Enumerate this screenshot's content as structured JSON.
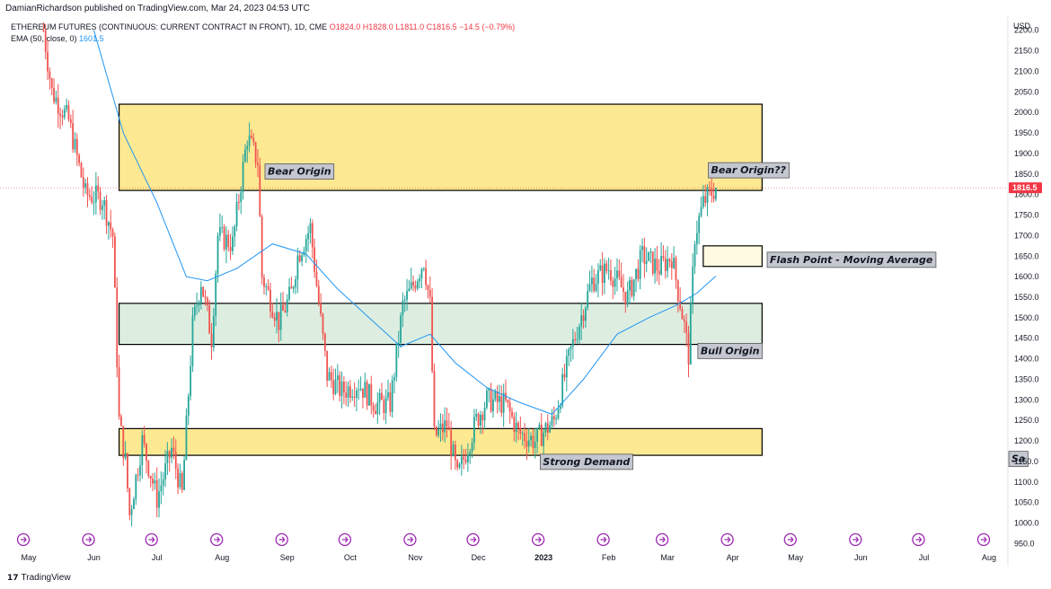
{
  "header": {
    "published": "DamianRichardson published on TradingView.com, Mar 24, 2023 04:53 UTC",
    "symbol": "ETHEREUM FUTURES (CONTINUOUS: CURRENT CONTRACT IN FRONT), 1D, CME",
    "ohlc": "O1824.0  H1828.0  L1811.0  C1816.5  −14.5 (−0.79%)",
    "ema_label": "EMA (50, close, 0)",
    "ema_value": "1601.5"
  },
  "footer": {
    "brand": "TradingView"
  },
  "colors": {
    "up": "#26a69a",
    "down": "#ef5350",
    "ema": "#2196f3",
    "zone_yellow": "#fde992",
    "zone_green": "#ddeee0",
    "zone_pale": "#fffbe0",
    "price_tag": "#f23645"
  },
  "chart_data": {
    "type": "candlestick",
    "currency": "USD",
    "last_price": "1816.5",
    "ylim": [
      940,
      2230
    ],
    "y_ticks": [
      "950.0",
      "1000.0",
      "1050.0",
      "1100.0",
      "1150.0",
      "1200.0",
      "1250.0",
      "1300.0",
      "1350.0",
      "1400.0",
      "1450.0",
      "1500.0",
      "1550.0",
      "1600.0",
      "1650.0",
      "1700.0",
      "1750.0",
      "1800.0",
      "1850.0",
      "1900.0",
      "1950.0",
      "2000.0",
      "2050.0",
      "2100.0",
      "2150.0",
      "2200.0"
    ],
    "x_ticks": [
      "May",
      "Jun",
      "Jul",
      "Aug",
      "Sep",
      "Oct",
      "Nov",
      "Dec",
      "2023",
      "Feb",
      "Mar",
      "Apr",
      "May",
      "Jun",
      "Jul",
      "Aug"
    ],
    "x_tick_dates": [
      "2022-05-01",
      "2022-06-01",
      "2022-07-01",
      "2022-08-01",
      "2022-09-01",
      "2022-10-01",
      "2022-11-01",
      "2022-12-01",
      "2023-01-01",
      "2023-02-01",
      "2023-03-01",
      "2023-04-01",
      "2023-05-01",
      "2023-06-01",
      "2023-07-01",
      "2023-08-01"
    ],
    "price_path": [
      [
        "2022-05-08",
        2200
      ],
      [
        "2022-05-12",
        2050
      ],
      [
        "2022-05-20",
        1980
      ],
      [
        "2022-05-28",
        1800
      ],
      [
        "2022-06-05",
        1790
      ],
      [
        "2022-06-10",
        1700
      ],
      [
        "2022-06-13",
        1250
      ],
      [
        "2022-06-16",
        1150
      ],
      [
        "2022-06-18",
        1020
      ],
      [
        "2022-06-24",
        1200
      ],
      [
        "2022-07-01",
        1060
      ],
      [
        "2022-07-08",
        1180
      ],
      [
        "2022-07-13",
        1070
      ],
      [
        "2022-07-18",
        1480
      ],
      [
        "2022-07-22",
        1590
      ],
      [
        "2022-07-27",
        1450
      ],
      [
        "2022-07-30",
        1700
      ],
      [
        "2022-08-06",
        1680
      ],
      [
        "2022-08-13",
        1940
      ],
      [
        "2022-08-18",
        1880
      ],
      [
        "2022-08-20",
        1600
      ],
      [
        "2022-08-28",
        1490
      ],
      [
        "2022-09-03",
        1560
      ],
      [
        "2022-09-06",
        1650
      ],
      [
        "2022-09-12",
        1720
      ],
      [
        "2022-09-15",
        1580
      ],
      [
        "2022-09-20",
        1360
      ],
      [
        "2022-09-27",
        1320
      ],
      [
        "2022-10-05",
        1340
      ],
      [
        "2022-10-13",
        1290
      ],
      [
        "2022-10-20",
        1290
      ],
      [
        "2022-10-26",
        1530
      ],
      [
        "2022-10-31",
        1580
      ],
      [
        "2022-11-05",
        1640
      ],
      [
        "2022-11-08",
        1530
      ],
      [
        "2022-11-10",
        1210
      ],
      [
        "2022-11-16",
        1240
      ],
      [
        "2022-11-21",
        1110
      ],
      [
        "2022-11-30",
        1250
      ],
      [
        "2022-12-05",
        1300
      ],
      [
        "2022-12-14",
        1290
      ],
      [
        "2022-12-20",
        1220
      ],
      [
        "2022-12-28",
        1200
      ],
      [
        "2023-01-06",
        1250
      ],
      [
        "2023-01-14",
        1420
      ],
      [
        "2023-01-24",
        1590
      ],
      [
        "2023-02-01",
        1620
      ],
      [
        "2023-02-10",
        1550
      ],
      [
        "2023-02-17",
        1650
      ],
      [
        "2023-02-25",
        1620
      ],
      [
        "2023-03-03",
        1650
      ],
      [
        "2023-03-09",
        1480
      ],
      [
        "2023-03-11",
        1410
      ],
      [
        "2023-03-14",
        1700
      ],
      [
        "2023-03-18",
        1780
      ],
      [
        "2023-03-21",
        1800
      ],
      [
        "2023-03-24",
        1816.5
      ]
    ],
    "ema_path": [
      [
        "2022-06-01",
        2200
      ],
      [
        "2022-06-15",
        1950
      ],
      [
        "2022-07-01",
        1780
      ],
      [
        "2022-07-15",
        1600
      ],
      [
        "2022-07-25",
        1590
      ],
      [
        "2022-08-08",
        1620
      ],
      [
        "2022-08-25",
        1680
      ],
      [
        "2022-09-10",
        1655
      ],
      [
        "2022-09-25",
        1570
      ],
      [
        "2022-10-10",
        1500
      ],
      [
        "2022-10-25",
        1430
      ],
      [
        "2022-11-08",
        1460
      ],
      [
        "2022-11-20",
        1390
      ],
      [
        "2022-12-05",
        1330
      ],
      [
        "2022-12-20",
        1295
      ],
      [
        "2023-01-05",
        1265
      ],
      [
        "2023-01-20",
        1350
      ],
      [
        "2023-02-05",
        1460
      ],
      [
        "2023-02-20",
        1500
      ],
      [
        "2023-03-05",
        1530
      ],
      [
        "2023-03-15",
        1560
      ],
      [
        "2023-03-24",
        1601.5
      ]
    ],
    "zones": [
      {
        "name": "bear-origin-zone",
        "y_low": 1810,
        "y_high": 2020,
        "x_start": "2022-06-13",
        "x_end": "2023-04-15",
        "fill": "zone_yellow"
      },
      {
        "name": "bull-origin-zone",
        "y_low": 1435,
        "y_high": 1535,
        "x_start": "2022-06-13",
        "x_end": "2023-04-15",
        "fill": "zone_green"
      },
      {
        "name": "strong-demand-zone",
        "y_low": 1165,
        "y_high": 1230,
        "x_start": "2022-06-13",
        "x_end": "2023-04-15",
        "fill": "zone_yellow"
      },
      {
        "name": "flash-point-zone",
        "y_low": 1625,
        "y_high": 1675,
        "x_start": "2023-03-18",
        "x_end": "2023-04-15",
        "fill": "zone_pale"
      }
    ],
    "annotations": [
      {
        "text": "Bear Origin",
        "date": "2022-08-21",
        "price": 1855
      },
      {
        "text": "Bear Origin??",
        "date": "2023-03-20",
        "price": 1858
      },
      {
        "text": "Flash Point - Moving Average",
        "date": "2023-04-17",
        "price": 1640
      },
      {
        "text": "Bull Origin",
        "date": "2023-03-15",
        "price": 1418
      },
      {
        "text": "Strong Demand",
        "date": "2022-12-30",
        "price": 1148
      },
      {
        "text": "Sa",
        "date": "2023-08-10",
        "price": 1155
      }
    ]
  }
}
